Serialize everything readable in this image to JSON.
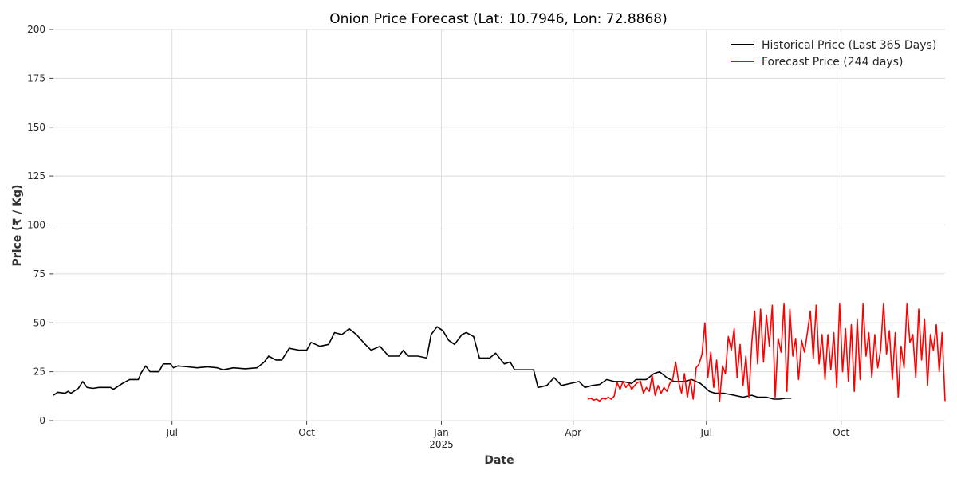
{
  "chart_data": {
    "type": "line",
    "title": "Onion Price Forecast (Lat: 10.7946, Lon: 72.8868)",
    "xlabel": "Date",
    "ylabel": "Price (₹ / Kg)",
    "xlim": [
      "2024-04-11",
      "2025-12-11"
    ],
    "ylim": [
      0,
      200
    ],
    "yticks": [
      0,
      25,
      50,
      75,
      100,
      125,
      150,
      175,
      200
    ],
    "xticks": [
      {
        "date": "2024-07-01",
        "label": "Jul",
        "sublabel": ""
      },
      {
        "date": "2024-10-01",
        "label": "Oct",
        "sublabel": ""
      },
      {
        "date": "2025-01-01",
        "label": "Jan",
        "sublabel": "2025"
      },
      {
        "date": "2025-04-01",
        "label": "Apr",
        "sublabel": ""
      },
      {
        "date": "2025-07-01",
        "label": "Jul",
        "sublabel": ""
      },
      {
        "date": "2025-10-01",
        "label": "Oct",
        "sublabel": ""
      }
    ],
    "grid": true,
    "legend_position": "top-right",
    "series": [
      {
        "name": "Historical Price (Last 365 Days)",
        "color": "#000000",
        "points": [
          [
            "2024-04-11",
            13
          ],
          [
            "2024-04-14",
            14.5
          ],
          [
            "2024-04-19",
            14
          ],
          [
            "2024-04-21",
            15
          ],
          [
            "2024-04-23",
            14
          ],
          [
            "2024-04-28",
            16.5
          ],
          [
            "2024-05-01",
            20
          ],
          [
            "2024-05-04",
            17
          ],
          [
            "2024-05-08",
            16.5
          ],
          [
            "2024-05-12",
            17
          ],
          [
            "2024-05-20",
            17
          ],
          [
            "2024-05-22",
            16
          ],
          [
            "2024-05-28",
            19
          ],
          [
            "2024-06-02",
            21
          ],
          [
            "2024-06-08",
            21
          ],
          [
            "2024-06-10",
            24.5
          ],
          [
            "2024-06-13",
            28
          ],
          [
            "2024-06-16",
            25
          ],
          [
            "2024-06-22",
            25
          ],
          [
            "2024-06-25",
            29
          ],
          [
            "2024-06-30",
            29
          ],
          [
            "2024-07-02",
            27
          ],
          [
            "2024-07-05",
            28
          ],
          [
            "2024-07-12",
            27.5
          ],
          [
            "2024-07-18",
            27
          ],
          [
            "2024-07-25",
            27.5
          ],
          [
            "2024-08-01",
            27
          ],
          [
            "2024-08-05",
            26
          ],
          [
            "2024-08-12",
            27
          ],
          [
            "2024-08-20",
            26.5
          ],
          [
            "2024-08-28",
            27
          ],
          [
            "2024-09-02",
            30
          ],
          [
            "2024-09-05",
            33
          ],
          [
            "2024-09-10",
            31
          ],
          [
            "2024-09-14",
            31
          ],
          [
            "2024-09-19",
            37
          ],
          [
            "2024-09-26",
            36
          ],
          [
            "2024-10-01",
            36
          ],
          [
            "2024-10-04",
            40
          ],
          [
            "2024-10-10",
            38
          ],
          [
            "2024-10-16",
            39
          ],
          [
            "2024-10-20",
            45
          ],
          [
            "2024-10-25",
            44
          ],
          [
            "2024-10-30",
            47
          ],
          [
            "2024-11-04",
            44
          ],
          [
            "2024-11-10",
            39
          ],
          [
            "2024-11-14",
            36
          ],
          [
            "2024-11-20",
            38
          ],
          [
            "2024-11-26",
            33
          ],
          [
            "2024-12-03",
            33
          ],
          [
            "2024-12-06",
            36
          ],
          [
            "2024-12-09",
            33
          ],
          [
            "2024-12-16",
            33
          ],
          [
            "2024-12-22",
            32
          ],
          [
            "2024-12-25",
            44
          ],
          [
            "2024-12-29",
            48
          ],
          [
            "2025-01-02",
            46
          ],
          [
            "2025-01-06",
            41
          ],
          [
            "2025-01-10",
            39
          ],
          [
            "2025-01-15",
            44
          ],
          [
            "2025-01-18",
            45
          ],
          [
            "2025-01-23",
            43
          ],
          [
            "2025-01-27",
            32
          ],
          [
            "2025-02-03",
            32
          ],
          [
            "2025-02-07",
            34.5
          ],
          [
            "2025-02-13",
            29
          ],
          [
            "2025-02-17",
            30
          ],
          [
            "2025-02-20",
            26
          ],
          [
            "2025-02-26",
            26
          ],
          [
            "2025-03-05",
            26
          ],
          [
            "2025-03-08",
            17
          ],
          [
            "2025-03-14",
            18
          ],
          [
            "2025-03-19",
            22
          ],
          [
            "2025-03-24",
            18
          ],
          [
            "2025-03-30",
            19
          ],
          [
            "2025-04-05",
            20
          ],
          [
            "2025-04-09",
            17
          ],
          [
            "2025-04-14",
            18
          ],
          [
            "2025-04-19",
            18.5
          ],
          [
            "2025-04-24",
            21
          ],
          [
            "2025-04-29",
            20
          ],
          [
            "2025-05-05",
            20
          ],
          [
            "2025-05-11",
            19
          ],
          [
            "2025-05-14",
            21
          ],
          [
            "2025-05-21",
            21
          ],
          [
            "2025-05-26",
            24
          ],
          [
            "2025-05-30",
            25
          ],
          [
            "2025-06-04",
            22
          ],
          [
            "2025-06-09",
            20
          ],
          [
            "2025-06-16",
            20
          ],
          [
            "2025-06-21",
            21
          ],
          [
            "2025-06-27",
            19
          ],
          [
            "2025-07-03",
            15
          ],
          [
            "2025-07-07",
            14
          ],
          [
            "2025-07-13",
            14
          ],
          [
            "2025-07-20",
            13
          ],
          [
            "2025-07-26",
            12
          ],
          [
            "2025-08-01",
            13
          ],
          [
            "2025-08-05",
            12
          ],
          [
            "2025-08-11",
            12
          ],
          [
            "2025-08-16",
            11
          ],
          [
            "2025-08-20",
            11
          ],
          [
            "2025-08-24",
            11.5
          ],
          [
            "2025-08-28",
            11.5
          ]
        ]
      },
      {
        "name": "Forecast Price (244 days)",
        "color": "#ff0000",
        "points": [
          [
            "2025-04-11",
            11
          ],
          [
            "2025-04-13",
            11.5
          ],
          [
            "2025-04-15",
            10.5
          ],
          [
            "2025-04-17",
            11
          ],
          [
            "2025-04-19",
            10
          ],
          [
            "2025-04-21",
            11.5
          ],
          [
            "2025-04-23",
            11
          ],
          [
            "2025-04-25",
            12
          ],
          [
            "2025-04-27",
            11
          ],
          [
            "2025-04-29",
            12.5
          ],
          [
            "2025-05-01",
            19.5
          ],
          [
            "2025-05-03",
            16
          ],
          [
            "2025-05-05",
            20
          ],
          [
            "2025-05-07",
            17
          ],
          [
            "2025-05-09",
            19
          ],
          [
            "2025-05-11",
            16
          ],
          [
            "2025-05-13",
            18
          ],
          [
            "2025-05-15",
            19.5
          ],
          [
            "2025-05-17",
            20
          ],
          [
            "2025-05-19",
            14
          ],
          [
            "2025-05-21",
            17
          ],
          [
            "2025-05-23",
            15
          ],
          [
            "2025-05-25",
            23
          ],
          [
            "2025-05-27",
            13
          ],
          [
            "2025-05-29",
            18
          ],
          [
            "2025-05-31",
            14
          ],
          [
            "2025-06-02",
            17
          ],
          [
            "2025-06-04",
            15
          ],
          [
            "2025-06-06",
            19
          ],
          [
            "2025-06-08",
            21
          ],
          [
            "2025-06-10",
            30
          ],
          [
            "2025-06-12",
            20
          ],
          [
            "2025-06-14",
            14
          ],
          [
            "2025-06-16",
            24
          ],
          [
            "2025-06-18",
            12
          ],
          [
            "2025-06-20",
            21
          ],
          [
            "2025-06-22",
            11
          ],
          [
            "2025-06-24",
            27
          ],
          [
            "2025-06-26",
            29
          ],
          [
            "2025-06-28",
            34
          ],
          [
            "2025-06-30",
            50
          ],
          [
            "2025-07-02",
            22
          ],
          [
            "2025-07-04",
            35
          ],
          [
            "2025-07-06",
            17
          ],
          [
            "2025-07-08",
            31
          ],
          [
            "2025-07-10",
            10
          ],
          [
            "2025-07-12",
            28
          ],
          [
            "2025-07-14",
            24
          ],
          [
            "2025-07-16",
            43
          ],
          [
            "2025-07-18",
            36
          ],
          [
            "2025-07-20",
            47
          ],
          [
            "2025-07-22",
            22
          ],
          [
            "2025-07-24",
            39
          ],
          [
            "2025-07-26",
            18
          ],
          [
            "2025-07-28",
            33
          ],
          [
            "2025-07-30",
            12
          ],
          [
            "2025-08-01",
            40
          ],
          [
            "2025-08-03",
            56
          ],
          [
            "2025-08-05",
            29
          ],
          [
            "2025-08-07",
            57
          ],
          [
            "2025-08-09",
            30
          ],
          [
            "2025-08-11",
            54
          ],
          [
            "2025-08-13",
            38
          ],
          [
            "2025-08-15",
            59
          ],
          [
            "2025-08-17",
            12
          ],
          [
            "2025-08-19",
            42
          ],
          [
            "2025-08-21",
            35
          ],
          [
            "2025-08-23",
            60
          ],
          [
            "2025-08-25",
            15
          ],
          [
            "2025-08-27",
            57
          ],
          [
            "2025-08-29",
            33
          ],
          [
            "2025-08-31",
            42
          ],
          [
            "2025-09-02",
            21
          ],
          [
            "2025-09-04",
            41
          ],
          [
            "2025-09-06",
            35
          ],
          [
            "2025-09-08",
            45
          ],
          [
            "2025-09-10",
            56
          ],
          [
            "2025-09-12",
            32
          ],
          [
            "2025-09-14",
            59
          ],
          [
            "2025-09-16",
            29
          ],
          [
            "2025-09-18",
            44
          ],
          [
            "2025-09-20",
            21
          ],
          [
            "2025-09-22",
            44
          ],
          [
            "2025-09-24",
            26
          ],
          [
            "2025-09-26",
            45
          ],
          [
            "2025-09-28",
            17
          ],
          [
            "2025-09-30",
            60
          ],
          [
            "2025-10-02",
            25
          ],
          [
            "2025-10-04",
            47
          ],
          [
            "2025-10-06",
            20
          ],
          [
            "2025-10-08",
            49
          ],
          [
            "2025-10-10",
            15
          ],
          [
            "2025-10-12",
            52
          ],
          [
            "2025-10-14",
            21
          ],
          [
            "2025-10-16",
            60
          ],
          [
            "2025-10-18",
            33
          ],
          [
            "2025-10-20",
            45
          ],
          [
            "2025-10-22",
            22
          ],
          [
            "2025-10-24",
            44
          ],
          [
            "2025-10-26",
            27
          ],
          [
            "2025-10-28",
            36
          ],
          [
            "2025-10-30",
            60
          ],
          [
            "2025-11-01",
            34
          ],
          [
            "2025-11-03",
            46
          ],
          [
            "2025-11-05",
            21
          ],
          [
            "2025-11-07",
            45
          ],
          [
            "2025-11-09",
            12
          ],
          [
            "2025-11-11",
            38
          ],
          [
            "2025-11-13",
            27
          ],
          [
            "2025-11-15",
            60
          ],
          [
            "2025-11-17",
            40
          ],
          [
            "2025-11-19",
            44
          ],
          [
            "2025-11-21",
            22
          ],
          [
            "2025-11-23",
            57
          ],
          [
            "2025-11-25",
            31
          ],
          [
            "2025-11-27",
            52
          ],
          [
            "2025-11-29",
            18
          ],
          [
            "2025-12-01",
            44
          ],
          [
            "2025-12-03",
            36
          ],
          [
            "2025-12-05",
            49
          ],
          [
            "2025-12-07",
            25
          ],
          [
            "2025-12-09",
            45
          ],
          [
            "2025-12-11",
            10
          ]
        ]
      }
    ]
  }
}
